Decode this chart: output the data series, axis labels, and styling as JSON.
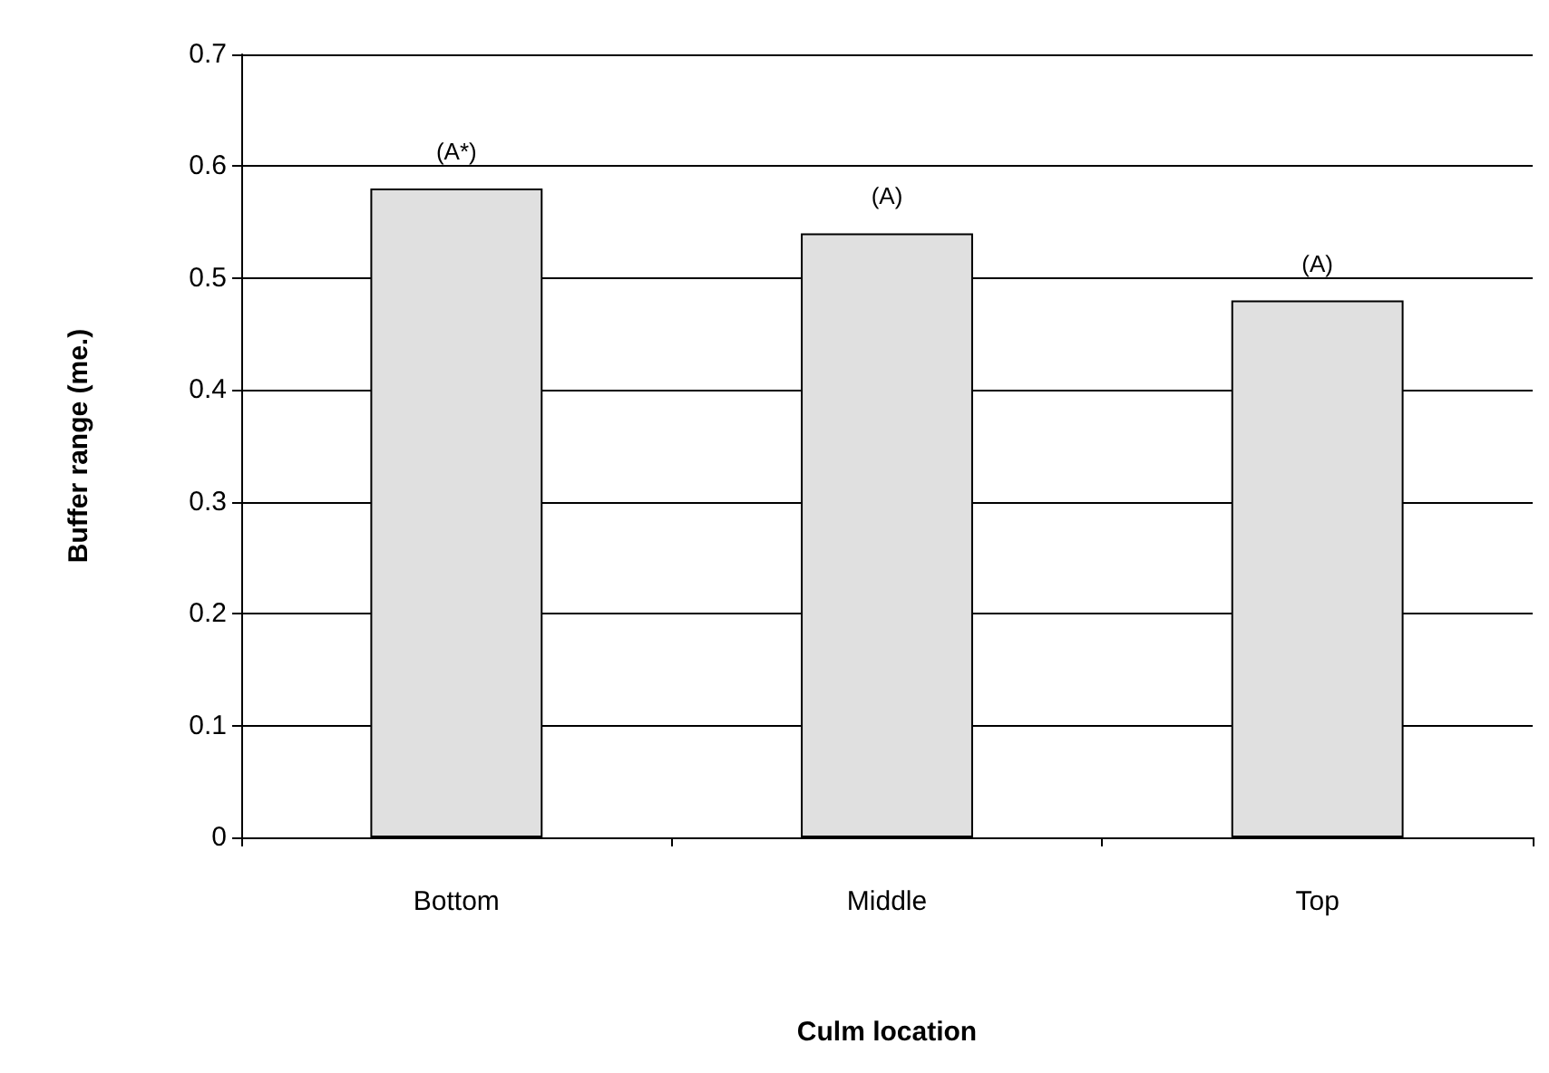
{
  "chart_data": {
    "type": "bar",
    "xlabel": "Culm location",
    "ylabel": "Buffer range (me.)",
    "categories": [
      "Bottom",
      "Middle",
      "Top"
    ],
    "values": [
      0.58,
      0.54,
      0.48
    ],
    "color": "#e0e0e0",
    "ylim": [
      0,
      0.7
    ],
    "yticks": [
      0,
      0.1,
      0.2,
      0.3,
      0.4,
      0.5,
      0.6,
      0.7
    ],
    "grid": "y",
    "annotations": [
      {
        "text": "(A*)",
        "x": "Bottom",
        "y": 0.58
      },
      {
        "text": "(A)",
        "x": "Middle",
        "y": 0.54
      },
      {
        "text": "(A)",
        "x": "Top",
        "y": 0.48
      }
    ]
  }
}
